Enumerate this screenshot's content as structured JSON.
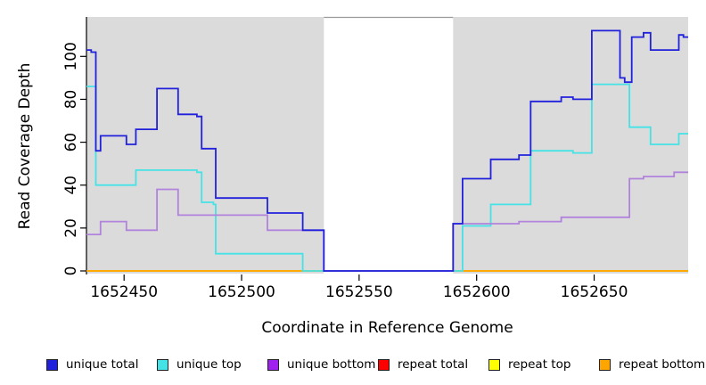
{
  "chart_data": {
    "type": "line",
    "subtype": "step-after",
    "title": "",
    "xlabel": "Coordinate in Reference Genome",
    "ylabel": "Read Coverage Depth",
    "xlim": [
      1652434,
      1652690
    ],
    "ylim": [
      0,
      118
    ],
    "xticks": [
      1652450,
      1652500,
      1652550,
      1652600,
      1652650
    ],
    "yticks": [
      0,
      20,
      40,
      60,
      80,
      100
    ],
    "grid": false,
    "plot_background": "#dbdbdb",
    "masked_region": {
      "start": 1652535,
      "end": 1652590,
      "fill": "#ffffff",
      "top_border": "#9a9a9a"
    },
    "legend_position": "bottom",
    "series": [
      {
        "name": "unique total",
        "color": "#2121dc",
        "steps": [
          [
            1652434,
            103
          ],
          [
            1652436,
            102
          ],
          [
            1652438,
            56
          ],
          [
            1652440,
            63
          ],
          [
            1652451,
            59
          ],
          [
            1652455,
            66
          ],
          [
            1652464,
            85
          ],
          [
            1652473,
            73
          ],
          [
            1652481,
            72
          ],
          [
            1652483,
            57
          ],
          [
            1652489,
            34
          ],
          [
            1652511,
            27
          ],
          [
            1652526,
            19
          ],
          [
            1652535,
            0
          ],
          [
            1652590,
            22
          ],
          [
            1652594,
            43
          ],
          [
            1652606,
            52
          ],
          [
            1652618,
            54
          ],
          [
            1652623,
            79
          ],
          [
            1652636,
            81
          ],
          [
            1652641,
            80
          ],
          [
            1652649,
            112
          ],
          [
            1652661,
            90
          ],
          [
            1652663,
            88
          ],
          [
            1652666,
            109
          ],
          [
            1652671,
            111
          ],
          [
            1652674,
            103
          ],
          [
            1652686,
            110
          ],
          [
            1652688,
            109
          ],
          [
            1652690,
            109
          ]
        ]
      },
      {
        "name": "unique top",
        "color": "#45e2e6",
        "steps": [
          [
            1652434,
            86
          ],
          [
            1652438,
            40
          ],
          [
            1652455,
            47
          ],
          [
            1652481,
            46
          ],
          [
            1652483,
            32
          ],
          [
            1652488,
            31
          ],
          [
            1652489,
            8
          ],
          [
            1652526,
            0
          ],
          [
            1652594,
            21
          ],
          [
            1652606,
            31
          ],
          [
            1652623,
            56
          ],
          [
            1652641,
            55
          ],
          [
            1652649,
            87
          ],
          [
            1652665,
            67
          ],
          [
            1652674,
            59
          ],
          [
            1652686,
            64
          ],
          [
            1652690,
            64
          ]
        ]
      },
      {
        "name": "unique bottom",
        "color": "#b183dc",
        "legend_color": "#a020f0",
        "steps": [
          [
            1652434,
            17
          ],
          [
            1652440,
            23
          ],
          [
            1652451,
            19
          ],
          [
            1652464,
            38
          ],
          [
            1652473,
            26
          ],
          [
            1652511,
            19
          ],
          [
            1652535,
            0
          ],
          [
            1652590,
            22
          ],
          [
            1652618,
            23
          ],
          [
            1652636,
            25
          ],
          [
            1652665,
            43
          ],
          [
            1652671,
            44
          ],
          [
            1652684,
            46
          ],
          [
            1652690,
            46
          ]
        ]
      },
      {
        "name": "repeat total",
        "color": "#e00000",
        "legend_color": "#ff0000",
        "steps": [
          [
            1652434,
            0
          ],
          [
            1652690,
            0
          ]
        ]
      },
      {
        "name": "repeat top",
        "color": "#ffff00",
        "steps": [
          [
            1652434,
            0
          ],
          [
            1652690,
            0
          ]
        ]
      },
      {
        "name": "repeat bottom",
        "color": "#ffa500",
        "steps": [
          [
            1652434,
            0
          ],
          [
            1652690,
            0
          ]
        ]
      }
    ]
  }
}
